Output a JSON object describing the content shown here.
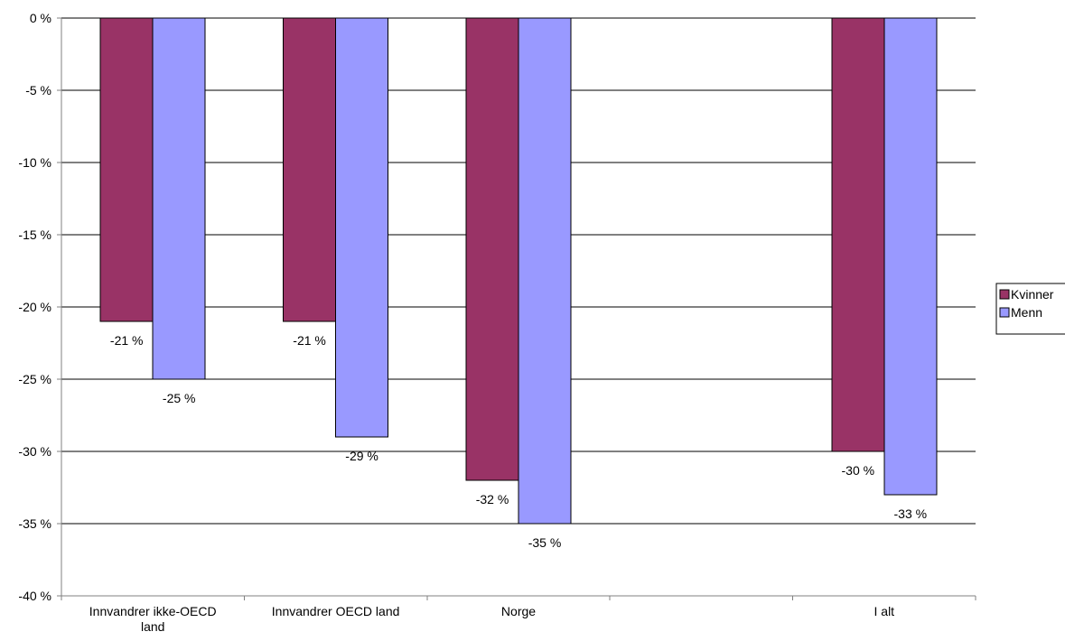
{
  "chart_data": {
    "type": "bar",
    "categories": [
      [
        "Innvandrer ikke-OECD",
        "land"
      ],
      [
        "Innvandrer OECD land"
      ],
      [
        "Norge"
      ],
      [
        ""
      ],
      [
        "I alt"
      ]
    ],
    "series": [
      {
        "name": "Kvinner",
        "color": "#993366",
        "values": [
          -21,
          -21,
          -32,
          null,
          -30
        ],
        "labels": [
          "-21 %",
          "-21 %",
          "-32 %",
          null,
          "-30 %"
        ]
      },
      {
        "name": "Menn",
        "color": "#9999ff",
        "values": [
          -25,
          -29,
          -35,
          null,
          -33
        ],
        "labels": [
          "-25 %",
          "-29 %",
          "-35 %",
          null,
          "-33 %"
        ]
      }
    ],
    "ylim": [
      -40,
      0
    ],
    "yticks": [
      0,
      -5,
      -10,
      -15,
      -20,
      -25,
      -30,
      -35,
      -40
    ],
    "ytick_labels": [
      "0 %",
      "-5 %",
      "-10 %",
      "-15 %",
      "-20 %",
      "-25 %",
      "-30 %",
      "-35 %",
      "-40 %"
    ],
    "grid": true,
    "legend_position": "right"
  }
}
